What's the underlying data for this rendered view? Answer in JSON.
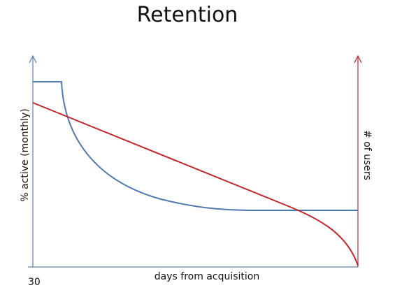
{
  "title": "Retention",
  "y_axis_label": "% active (monthly)",
  "y2_axis_label": "# of users",
  "x_axis_label": "days from acquisition",
  "x_start_label": "30"
}
